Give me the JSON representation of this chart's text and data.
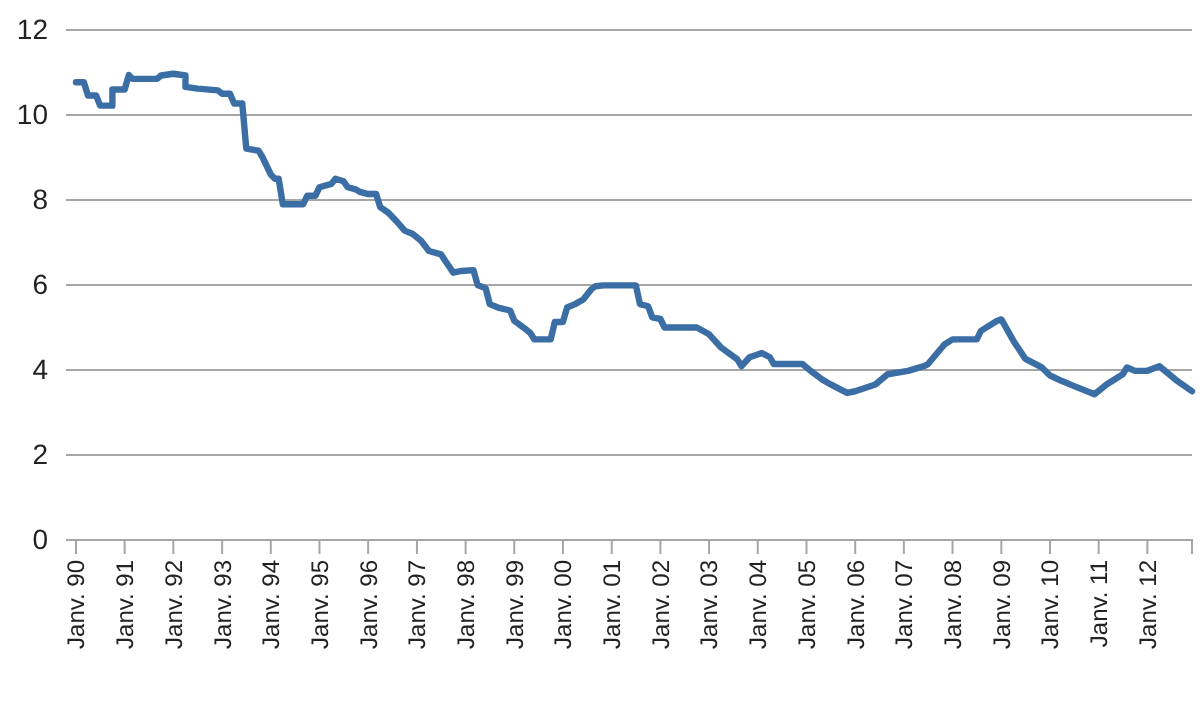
{
  "chart_data": {
    "type": "line",
    "xlim": [
      "1990-01",
      "2012-12"
    ],
    "ylim": [
      0,
      12
    ],
    "yticks": [
      0,
      2,
      4,
      6,
      8,
      10,
      12
    ],
    "grid": "y",
    "marker": "none",
    "line_style": "solid",
    "xticks": [
      {
        "value": "1990-01",
        "label": "Janv. 90"
      },
      {
        "value": "1991-01",
        "label": "Janv. 91"
      },
      {
        "value": "1992-01",
        "label": "Janv. 92"
      },
      {
        "value": "1993-01",
        "label": "Janv. 93"
      },
      {
        "value": "1994-01",
        "label": "Janv. 94"
      },
      {
        "value": "1995-01",
        "label": "Janv. 95"
      },
      {
        "value": "1996-01",
        "label": "Janv. 96"
      },
      {
        "value": "1997-01",
        "label": "Janv. 97"
      },
      {
        "value": "1998-01",
        "label": "Janv. 98"
      },
      {
        "value": "1999-01",
        "label": "Janv. 99"
      },
      {
        "value": "2000-01",
        "label": "Janv. 00"
      },
      {
        "value": "2001-01",
        "label": "Janv. 01"
      },
      {
        "value": "2002-01",
        "label": "Janv. 02"
      },
      {
        "value": "2003-01",
        "label": "Janv. 03"
      },
      {
        "value": "2004-01",
        "label": "Janv. 04"
      },
      {
        "value": "2005-01",
        "label": "Janv. 05"
      },
      {
        "value": "2006-01",
        "label": "Janv. 06"
      },
      {
        "value": "2007-01",
        "label": "Janv. 07"
      },
      {
        "value": "2008-01",
        "label": "Janv. 08"
      },
      {
        "value": "2009-01",
        "label": "Janv. 09"
      },
      {
        "value": "2010-01",
        "label": "Janv. 10"
      },
      {
        "value": "2011-01",
        "label": "Janv. 11"
      },
      {
        "value": "2012-01",
        "label": "Janv. 12"
      }
    ],
    "series": [
      {
        "color": "#3a6ea5",
        "x": [
          "1990-01",
          "1990-03",
          "1990-04",
          "1990-06",
          "1990-07",
          "1990-10",
          "1990-10",
          "1991-01",
          "1991-02",
          "1991-03",
          "1991-09",
          "1991-10",
          "1992-01",
          "1992-04",
          "1992-04",
          "1992-07",
          "1992-12",
          "1993-01",
          "1993-03",
          "1993-04",
          "1993-06",
          "1993-07",
          "1993-10",
          "1993-11",
          "1994-01",
          "1994-02",
          "1994-03",
          "1994-04",
          "1994-09",
          "1994-10",
          "1994-12",
          "1995-01",
          "1995-04",
          "1995-05",
          "1995-07",
          "1995-08",
          "1995-10",
          "1995-11",
          "1996-01",
          "1996-03",
          "1996-04",
          "1996-06",
          "1996-08",
          "1996-10",
          "1996-12",
          "1997-02",
          "1997-04",
          "1997-07",
          "1997-08",
          "1997-10",
          "1997-12",
          "1998-03",
          "1998-04",
          "1998-06",
          "1998-07",
          "1998-09",
          "1998-12",
          "1999-01",
          "1999-04",
          "1999-05",
          "1999-06",
          "1999-10",
          "1999-11",
          "2000-01",
          "2000-02",
          "2000-04",
          "2000-06",
          "2000-08",
          "2000-09",
          "2000-11",
          "2001-07",
          "2001-08",
          "2001-10",
          "2001-11",
          "2002-01",
          "2002-02",
          "2002-10",
          "2003-01",
          "2003-04",
          "2003-08",
          "2003-09",
          "2003-11",
          "2004-02",
          "2004-04",
          "2004-05",
          "2004-12",
          "2005-02",
          "2005-05",
          "2005-07",
          "2005-11",
          "2006-01",
          "2006-06",
          "2006-09",
          "2007-02",
          "2007-06",
          "2007-07",
          "2007-11",
          "2008-01",
          "2008-07",
          "2008-08",
          "2008-12",
          "2009-01",
          "2009-04",
          "2009-07",
          "2009-11",
          "2010-01",
          "2010-04",
          "2010-07",
          "2010-12",
          "2011-03",
          "2011-07",
          "2011-08",
          "2011-10",
          "2012-01",
          "2012-04",
          "2012-06",
          "2012-08",
          "2012-12"
        ],
        "values": [
          10.77,
          10.77,
          10.46,
          10.46,
          10.22,
          10.22,
          10.6,
          10.6,
          10.94,
          10.85,
          10.85,
          10.93,
          10.97,
          10.93,
          10.66,
          10.62,
          10.58,
          10.5,
          10.5,
          10.27,
          10.27,
          9.21,
          9.16,
          9.0,
          8.6,
          8.5,
          8.5,
          7.9,
          7.9,
          8.1,
          8.1,
          8.3,
          8.38,
          8.5,
          8.44,
          8.3,
          8.25,
          8.19,
          8.14,
          8.14,
          7.83,
          7.7,
          7.5,
          7.28,
          7.2,
          7.04,
          6.8,
          6.72,
          6.57,
          6.29,
          6.33,
          6.35,
          6.0,
          5.92,
          5.55,
          5.47,
          5.4,
          5.16,
          4.95,
          4.87,
          4.72,
          4.72,
          5.13,
          5.13,
          5.47,
          5.55,
          5.66,
          5.9,
          5.97,
          5.99,
          5.99,
          5.55,
          5.5,
          5.24,
          5.2,
          5.0,
          5.0,
          4.84,
          4.53,
          4.25,
          4.09,
          4.3,
          4.4,
          4.3,
          4.14,
          4.14,
          3.98,
          3.77,
          3.66,
          3.46,
          3.5,
          3.66,
          3.9,
          3.98,
          4.09,
          4.14,
          4.6,
          4.72,
          4.72,
          4.92,
          5.16,
          5.19,
          4.69,
          4.26,
          4.06,
          3.87,
          3.74,
          3.62,
          3.43,
          3.66,
          3.9,
          4.06,
          3.98,
          3.98,
          4.09,
          3.93,
          3.77,
          3.5
        ]
      }
    ]
  }
}
